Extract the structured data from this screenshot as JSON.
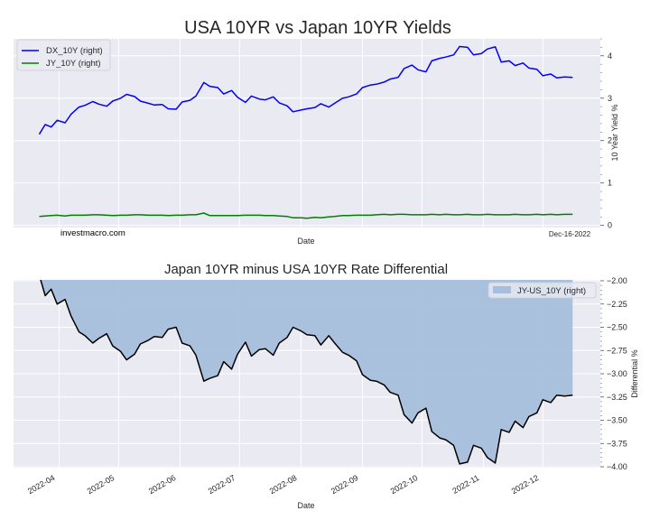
{
  "chart_data": [
    {
      "type": "line",
      "title": "USA 10YR vs Japan 10YR Yields",
      "xlabel": "Date",
      "ylabel": "10 Year Yield %",
      "yaxis_side": "right",
      "ylim": [
        -0.05,
        4.4
      ],
      "yticks": [
        0,
        1,
        2,
        3,
        4
      ],
      "ytick_labels": [
        "0",
        "1",
        "2",
        "3",
        "4"
      ],
      "xlim": [
        "2022-03-09",
        "2022-12-30"
      ],
      "xtick_labels": [],
      "grid": true,
      "legend_position": "top-left",
      "watermark": "investmacro.com",
      "date_stamp": "Dec-16-2022",
      "x": [
        "2022-03-22",
        "2022-03-25",
        "2022-03-28",
        "2022-03-31",
        "2022-04-04",
        "2022-04-07",
        "2022-04-11",
        "2022-04-14",
        "2022-04-18",
        "2022-04-21",
        "2022-04-25",
        "2022-04-28",
        "2022-05-02",
        "2022-05-05",
        "2022-05-09",
        "2022-05-12",
        "2022-05-16",
        "2022-05-19",
        "2022-05-23",
        "2022-05-26",
        "2022-05-30",
        "2022-06-02",
        "2022-06-06",
        "2022-06-09",
        "2022-06-13",
        "2022-06-16",
        "2022-06-20",
        "2022-06-23",
        "2022-06-27",
        "2022-06-30",
        "2022-07-04",
        "2022-07-07",
        "2022-07-11",
        "2022-07-14",
        "2022-07-18",
        "2022-07-21",
        "2022-07-25",
        "2022-07-28",
        "2022-08-01",
        "2022-08-04",
        "2022-08-08",
        "2022-08-11",
        "2022-08-15",
        "2022-08-18",
        "2022-08-22",
        "2022-08-25",
        "2022-08-29",
        "2022-09-01",
        "2022-09-05",
        "2022-09-08",
        "2022-09-12",
        "2022-09-15",
        "2022-09-19",
        "2022-09-22",
        "2022-09-26",
        "2022-09-29",
        "2022-10-03",
        "2022-10-06",
        "2022-10-10",
        "2022-10-13",
        "2022-10-17",
        "2022-10-20",
        "2022-10-24",
        "2022-10-27",
        "2022-10-31",
        "2022-11-03",
        "2022-11-07",
        "2022-11-10",
        "2022-11-14",
        "2022-11-17",
        "2022-11-21",
        "2022-11-24",
        "2022-11-28",
        "2022-12-01",
        "2022-12-05",
        "2022-12-08",
        "2022-12-12",
        "2022-12-16"
      ],
      "series": [
        {
          "name": "DX_10Y (right)",
          "color": "#0000ff",
          "values": [
            2.15,
            2.38,
            2.32,
            2.48,
            2.42,
            2.62,
            2.79,
            2.83,
            2.92,
            2.86,
            2.81,
            2.93,
            3.0,
            3.09,
            3.04,
            2.93,
            2.88,
            2.84,
            2.85,
            2.75,
            2.74,
            2.91,
            2.95,
            3.05,
            3.37,
            3.28,
            3.25,
            3.1,
            3.18,
            3.02,
            2.9,
            3.05,
            2.98,
            2.96,
            3.03,
            2.89,
            2.82,
            2.68,
            2.72,
            2.75,
            2.78,
            2.87,
            2.79,
            2.88,
            3.0,
            3.03,
            3.1,
            3.25,
            3.31,
            3.33,
            3.38,
            3.45,
            3.49,
            3.7,
            3.78,
            3.67,
            3.62,
            3.88,
            3.94,
            3.97,
            4.02,
            4.22,
            4.2,
            4.02,
            4.05,
            4.16,
            4.21,
            3.85,
            3.88,
            3.77,
            3.83,
            3.71,
            3.68,
            3.53,
            3.57,
            3.48,
            3.5,
            3.49
          ]
        },
        {
          "name": "JY_10Y (right)",
          "color": "#008000",
          "values": [
            0.21,
            0.22,
            0.23,
            0.24,
            0.22,
            0.24,
            0.24,
            0.24,
            0.25,
            0.25,
            0.24,
            0.23,
            0.24,
            0.24,
            0.25,
            0.25,
            0.24,
            0.24,
            0.24,
            0.23,
            0.24,
            0.24,
            0.25,
            0.25,
            0.29,
            0.23,
            0.23,
            0.23,
            0.23,
            0.23,
            0.24,
            0.24,
            0.24,
            0.23,
            0.23,
            0.22,
            0.21,
            0.18,
            0.18,
            0.17,
            0.19,
            0.18,
            0.2,
            0.21,
            0.23,
            0.23,
            0.24,
            0.24,
            0.24,
            0.25,
            0.26,
            0.25,
            0.26,
            0.26,
            0.25,
            0.25,
            0.25,
            0.26,
            0.25,
            0.26,
            0.25,
            0.25,
            0.26,
            0.25,
            0.25,
            0.26,
            0.25,
            0.25,
            0.25,
            0.26,
            0.25,
            0.25,
            0.26,
            0.25,
            0.26,
            0.25,
            0.26,
            0.26
          ]
        }
      ]
    },
    {
      "type": "area",
      "title": "Japan 10YR minus USA 10YR Rate Differential",
      "xlabel": "Date",
      "ylabel": "Differential %",
      "yaxis_side": "right",
      "ylim": [
        -4.0,
        -2.0
      ],
      "yticks": [
        -2.0,
        -2.25,
        -2.5,
        -2.75,
        -3.0,
        -3.25,
        -3.5,
        -3.75,
        -4.0
      ],
      "ytick_labels": [
        "−2.00",
        "−2.25",
        "−2.50",
        "−2.75",
        "−3.00",
        "−3.25",
        "−3.50",
        "−3.75",
        "−4.00"
      ],
      "xlim": [
        "2022-03-09",
        "2022-12-30"
      ],
      "xticks": [
        "2022-04-01",
        "2022-05-01",
        "2022-06-01",
        "2022-07-01",
        "2022-08-01",
        "2022-09-01",
        "2022-10-01",
        "2022-11-01",
        "2022-12-01"
      ],
      "xtick_labels": [
        "2022-04",
        "2022-05",
        "2022-06",
        "2022-07",
        "2022-08",
        "2022-09",
        "2022-10",
        "2022-11",
        "2022-12"
      ],
      "grid": true,
      "legend_position": "top-right",
      "fill_color": "#a7bfdc",
      "line_color": "#000000",
      "x": [
        "2022-03-22",
        "2022-03-25",
        "2022-03-28",
        "2022-03-31",
        "2022-04-04",
        "2022-04-07",
        "2022-04-11",
        "2022-04-14",
        "2022-04-18",
        "2022-04-21",
        "2022-04-25",
        "2022-04-28",
        "2022-05-02",
        "2022-05-05",
        "2022-05-09",
        "2022-05-12",
        "2022-05-16",
        "2022-05-19",
        "2022-05-23",
        "2022-05-26",
        "2022-05-30",
        "2022-06-02",
        "2022-06-06",
        "2022-06-09",
        "2022-06-13",
        "2022-06-16",
        "2022-06-20",
        "2022-06-23",
        "2022-06-27",
        "2022-06-30",
        "2022-07-04",
        "2022-07-07",
        "2022-07-11",
        "2022-07-14",
        "2022-07-18",
        "2022-07-21",
        "2022-07-25",
        "2022-07-28",
        "2022-08-01",
        "2022-08-04",
        "2022-08-08",
        "2022-08-11",
        "2022-08-15",
        "2022-08-18",
        "2022-08-22",
        "2022-08-25",
        "2022-08-29",
        "2022-09-01",
        "2022-09-05",
        "2022-09-08",
        "2022-09-12",
        "2022-09-15",
        "2022-09-19",
        "2022-09-22",
        "2022-09-26",
        "2022-09-29",
        "2022-10-03",
        "2022-10-06",
        "2022-10-10",
        "2022-10-13",
        "2022-10-17",
        "2022-10-20",
        "2022-10-24",
        "2022-10-27",
        "2022-10-31",
        "2022-11-03",
        "2022-11-07",
        "2022-11-10",
        "2022-11-14",
        "2022-11-17",
        "2022-11-21",
        "2022-11-24",
        "2022-11-28",
        "2022-12-01",
        "2022-12-05",
        "2022-12-08",
        "2022-12-12",
        "2022-12-16"
      ],
      "series": [
        {
          "name": "JY-US_10Y (right)",
          "values": [
            -1.94,
            -2.16,
            -2.09,
            -2.25,
            -2.2,
            -2.38,
            -2.55,
            -2.59,
            -2.67,
            -2.62,
            -2.57,
            -2.7,
            -2.76,
            -2.85,
            -2.79,
            -2.68,
            -2.64,
            -2.6,
            -2.61,
            -2.52,
            -2.5,
            -2.67,
            -2.7,
            -2.8,
            -3.08,
            -3.05,
            -3.02,
            -2.87,
            -2.95,
            -2.79,
            -2.66,
            -2.81,
            -2.74,
            -2.73,
            -2.8,
            -2.67,
            -2.61,
            -2.5,
            -2.54,
            -2.58,
            -2.59,
            -2.69,
            -2.59,
            -2.67,
            -2.77,
            -2.8,
            -2.86,
            -3.01,
            -3.07,
            -3.08,
            -3.12,
            -3.2,
            -3.23,
            -3.44,
            -3.53,
            -3.42,
            -3.37,
            -3.62,
            -3.69,
            -3.71,
            -3.77,
            -3.97,
            -3.95,
            -3.77,
            -3.8,
            -3.9,
            -3.96,
            -3.6,
            -3.63,
            -3.51,
            -3.58,
            -3.46,
            -3.42,
            -3.28,
            -3.31,
            -3.23,
            -3.24,
            -3.23
          ]
        }
      ]
    }
  ]
}
